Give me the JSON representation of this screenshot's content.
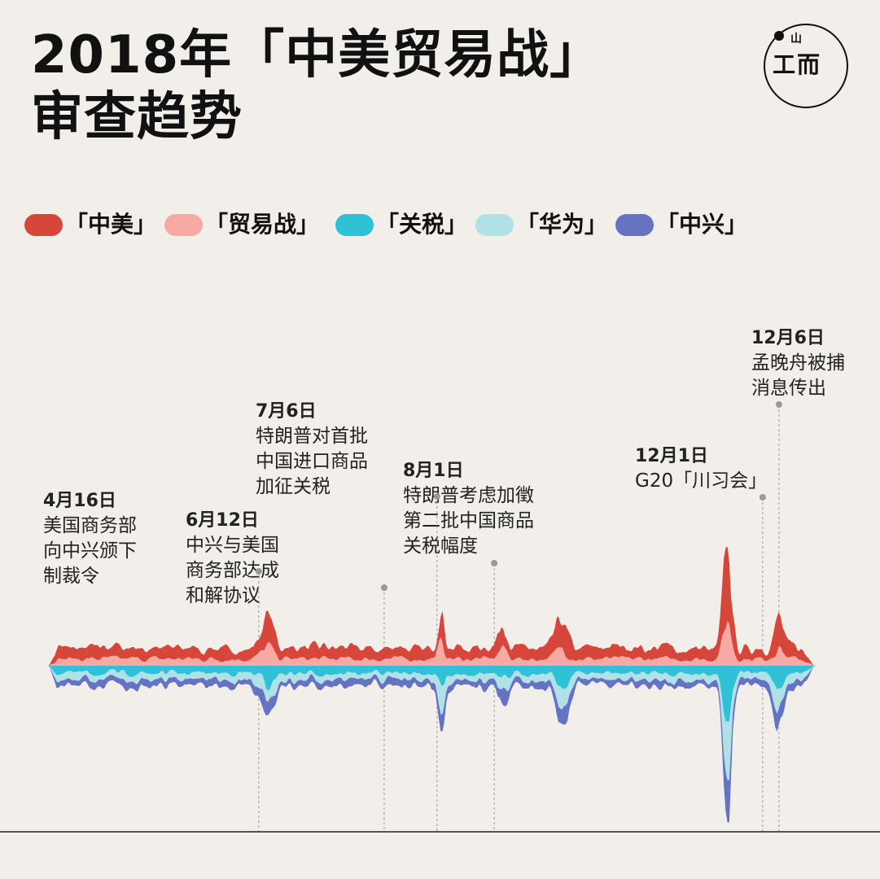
{
  "title": {
    "line1": "2018年「中美贸易战」",
    "line2": "审查趋势"
  },
  "logo": {
    "glyph": "工而",
    "tiny": "山"
  },
  "legend": [
    {
      "label": "「中美」",
      "color": "#d6463b"
    },
    {
      "label": "「贸易战」",
      "color": "#f7aaa3"
    },
    {
      "label": "「关税」",
      "color": "#2fc2d6"
    },
    {
      "label": "「华为」",
      "color": "#b0e1e6"
    },
    {
      "label": "「中兴」",
      "color": "#6672c2"
    }
  ],
  "annotations": [
    {
      "date": "4月16日",
      "lines": [
        "美国商务部",
        "向中兴颁下",
        "制裁令"
      ]
    },
    {
      "date": "6月12日",
      "lines": [
        "中兴与美国",
        "商务部达成",
        "和解协议"
      ]
    },
    {
      "date": "7月6日",
      "lines": [
        "特朗普对首批",
        "中国进口商品",
        "加征关税"
      ]
    },
    {
      "date": "8月1日",
      "lines": [
        "特朗普考虑加徵",
        "第二批中国商品",
        "关税幅度"
      ]
    },
    {
      "date": "12月1日",
      "lines": [
        "G20「川习会」"
      ]
    },
    {
      "date": "12月6日",
      "lines": [
        "孟晚舟被捕",
        "消息传出"
      ]
    }
  ],
  "chart_data": {
    "type": "area",
    "style": "streamgraph",
    "x_range": [
      "2018-01-01",
      "2018-12-31"
    ],
    "series": [
      {
        "name": "「中美」",
        "color": "#d6463b"
      },
      {
        "name": "「贸易战」",
        "color": "#f7aaa3"
      },
      {
        "name": "「关税」",
        "color": "#2fc2d6"
      },
      {
        "name": "「华为」",
        "color": "#b0e1e6"
      },
      {
        "name": "「中兴」",
        "color": "#6672c2"
      }
    ],
    "events": [
      "2018-04-16",
      "2018-06-12",
      "2018-07-06",
      "2018-08-01",
      "2018-12-01",
      "2018-12-06"
    ],
    "peak": {
      "date": "2018-11-15"
    }
  }
}
